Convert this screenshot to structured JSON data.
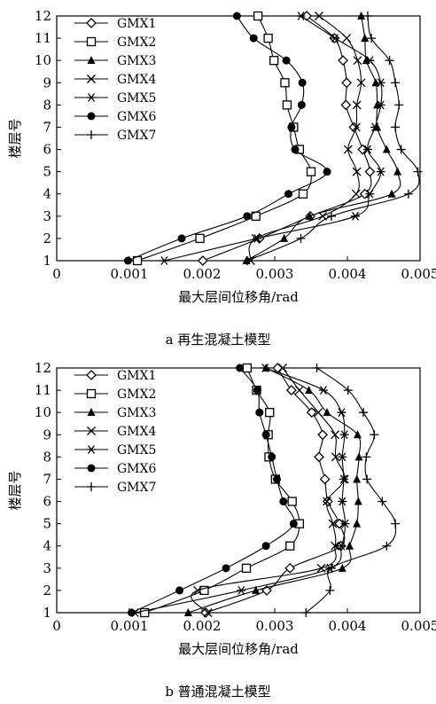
{
  "chart_data": [
    {
      "type": "line",
      "caption": "a 再生混凝土模型",
      "xlabel": "最大层间位移角/rad",
      "ylabel": "楼层号",
      "xlim": [
        0,
        0.005
      ],
      "ylim": [
        1,
        12
      ],
      "xticks": [
        "0",
        "0.001",
        "0.002",
        "0.003",
        "0.004",
        "0.005"
      ],
      "yticks": [
        "1",
        "2",
        "3",
        "4",
        "5",
        "6",
        "7",
        "8",
        "9",
        "10",
        "11",
        "12"
      ],
      "legend_position": "top-left",
      "series": [
        {
          "name": "GMX1",
          "marker": "diamond",
          "y": [
            1,
            2,
            3,
            4,
            5,
            6,
            7,
            8,
            9,
            10,
            11,
            12
          ],
          "x": [
            0.00201,
            0.00279,
            0.00349,
            0.00424,
            0.00431,
            0.00421,
            0.00409,
            0.00398,
            0.00399,
            0.00394,
            0.00382,
            0.00344
          ]
        },
        {
          "name": "GMX2",
          "marker": "square",
          "y": [
            1,
            2,
            3,
            4,
            5,
            6,
            7,
            8,
            9,
            10,
            11,
            12
          ],
          "x": [
            0.00111,
            0.00197,
            0.00274,
            0.00339,
            0.0035,
            0.00334,
            0.00326,
            0.00317,
            0.00314,
            0.00299,
            0.00291,
            0.00277
          ]
        },
        {
          "name": "GMX3",
          "marker": "triangle",
          "y": [
            1,
            2,
            3,
            4,
            5,
            6,
            7,
            8,
            9,
            10,
            11,
            12
          ],
          "x": [
            0.00261,
            0.00313,
            0.00348,
            0.00461,
            0.00469,
            0.00454,
            0.00441,
            0.00441,
            0.00439,
            0.00426,
            0.00424,
            0.00419
          ]
        },
        {
          "name": "GMX4",
          "marker": "x",
          "y": [
            1,
            2,
            3,
            4,
            5,
            6,
            7,
            8,
            9,
            10,
            11,
            12
          ],
          "x": [
            0.00267,
            0.00274,
            0.00366,
            0.00412,
            0.00413,
            0.00401,
            0.00412,
            0.00413,
            0.00419,
            0.00414,
            0.00399,
            0.00361
          ]
        },
        {
          "name": "GMX5",
          "marker": "asterisk",
          "y": [
            1,
            2,
            3,
            4,
            5,
            6,
            7,
            8,
            9,
            10,
            11,
            12
          ],
          "x": [
            0.00148,
            0.00276,
            0.00411,
            0.00431,
            0.00446,
            0.00428,
            0.00438,
            0.00446,
            0.00446,
            0.00431,
            0.00383,
            0.00336
          ]
        },
        {
          "name": "GMX6",
          "marker": "circle",
          "y": [
            1,
            2,
            3,
            4,
            5,
            6,
            7,
            8,
            9,
            10,
            11,
            12
          ],
          "x": [
            0.00098,
            0.00172,
            0.00262,
            0.00319,
            0.00372,
            0.00328,
            0.00323,
            0.00337,
            0.00338,
            0.00316,
            0.00271,
            0.00248
          ]
        },
        {
          "name": "GMX7",
          "marker": "plus",
          "y": [
            1,
            2,
            3,
            4,
            5,
            6,
            7,
            8,
            9,
            10,
            11,
            12
          ],
          "x": [
            0.00262,
            0.00336,
            0.00378,
            0.00484,
            0.00497,
            0.00474,
            0.00466,
            0.00471,
            0.00466,
            0.00458,
            0.00433,
            0.00428
          ]
        }
      ]
    },
    {
      "type": "line",
      "caption": "b 普通混凝土模型",
      "xlabel": "最大层间位移角/rad",
      "ylabel": "楼层号",
      "xlim": [
        0,
        0.005
      ],
      "ylim": [
        1,
        12
      ],
      "xticks": [
        "0",
        "0.001",
        "0.002",
        "0.003",
        "0.004",
        "0.005"
      ],
      "yticks": [
        "1",
        "2",
        "3",
        "4",
        "5",
        "6",
        "7",
        "8",
        "9",
        "10",
        "11",
        "12"
      ],
      "legend_position": "top-left",
      "series": [
        {
          "name": "GMX1",
          "marker": "diamond",
          "y": [
            1,
            2,
            3,
            4,
            5,
            6,
            7,
            8,
            9,
            10,
            11,
            12
          ],
          "x": [
            0.00205,
            0.00289,
            0.00321,
            0.00391,
            0.00389,
            0.00373,
            0.00369,
            0.00361,
            0.00366,
            0.00351,
            0.00323,
            0.00304
          ]
        },
        {
          "name": "GMX2",
          "marker": "square",
          "y": [
            1,
            2,
            3,
            4,
            5,
            6,
            7,
            8,
            9,
            10,
            11,
            12
          ],
          "x": [
            0.00121,
            0.00203,
            0.00261,
            0.00321,
            0.00334,
            0.00324,
            0.00301,
            0.00292,
            0.00291,
            0.00293,
            0.00275,
            0.00262
          ]
        },
        {
          "name": "GMX3",
          "marker": "triangle",
          "y": [
            1,
            2,
            3,
            4,
            5,
            6,
            7,
            8,
            9,
            10,
            11,
            12
          ],
          "x": [
            0.00181,
            0.00274,
            0.00393,
            0.00403,
            0.00413,
            0.00415,
            0.00413,
            0.00416,
            0.00414,
            0.00372,
            0.00347,
            0.00288
          ]
        },
        {
          "name": "GMX4",
          "marker": "x",
          "y": [
            1,
            2,
            3,
            4,
            5,
            6,
            7,
            8,
            9,
            10,
            11,
            12
          ],
          "x": [
            0.00208,
            0.00194,
            0.00364,
            0.00383,
            0.0038,
            0.00372,
            0.00396,
            0.00384,
            0.00383,
            0.0036,
            0.00334,
            0.00311
          ]
        },
        {
          "name": "GMX5",
          "marker": "asterisk",
          "y": [
            1,
            2,
            3,
            4,
            5,
            6,
            7,
            8,
            9,
            10,
            11,
            12
          ],
          "x": [
            0.00108,
            0.00254,
            0.00376,
            0.00392,
            0.00397,
            0.00393,
            0.00395,
            0.00393,
            0.00396,
            0.00392,
            0.00367,
            0.00287
          ]
        },
        {
          "name": "GMX6",
          "marker": "circle",
          "y": [
            1,
            2,
            3,
            4,
            5,
            6,
            7,
            8,
            9,
            10,
            11,
            12
          ],
          "x": [
            0.00103,
            0.00169,
            0.00233,
            0.00288,
            0.00326,
            0.00312,
            0.00303,
            0.00296,
            0.00288,
            0.00279,
            0.00276,
            0.00252
          ]
        },
        {
          "name": "GMX7",
          "marker": "plus",
          "y": [
            1,
            2,
            3,
            4,
            5,
            6,
            7,
            8,
            9,
            10,
            11,
            12
          ],
          "x": [
            0.00343,
            0.00376,
            0.00378,
            0.00454,
            0.00466,
            0.00448,
            0.00427,
            0.00426,
            0.00437,
            0.00422,
            0.00401,
            0.00358
          ]
        }
      ]
    }
  ]
}
